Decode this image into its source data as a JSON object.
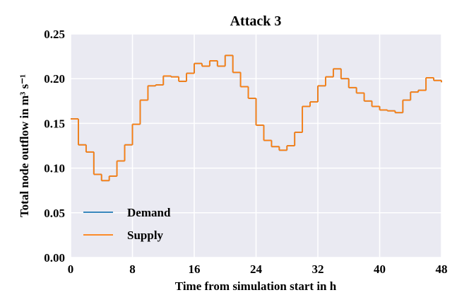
{
  "chart_data": {
    "type": "line",
    "step": true,
    "title": "Attack 3",
    "x_label": "Time from simulation start in h",
    "y_label": "Total node outflow in m³ s⁻¹",
    "x": [
      0,
      1,
      2,
      3,
      4,
      5,
      6,
      7,
      8,
      9,
      10,
      11,
      12,
      13,
      14,
      15,
      16,
      17,
      18,
      19,
      20,
      21,
      22,
      23,
      24,
      25,
      26,
      27,
      28,
      29,
      30,
      31,
      32,
      33,
      34,
      35,
      36,
      37,
      38,
      39,
      40,
      41,
      42,
      43,
      44,
      45,
      46,
      47,
      48
    ],
    "series": [
      {
        "name": "Demand",
        "color": "#1f77b4",
        "values": [
          0.155,
          0.126,
          0.118,
          0.093,
          0.086,
          0.091,
          0.108,
          0.126,
          0.149,
          0.176,
          0.192,
          0.193,
          0.203,
          0.202,
          0.197,
          0.206,
          0.217,
          0.214,
          0.22,
          0.214,
          0.226,
          0.207,
          0.191,
          0.178,
          0.148,
          0.131,
          0.124,
          0.12,
          0.125,
          0.14,
          0.169,
          0.174,
          0.192,
          0.202,
          0.211,
          0.2,
          0.19,
          0.184,
          0.175,
          0.169,
          0.165,
          0.164,
          0.162,
          0.176,
          0.185,
          0.187,
          0.201,
          0.198,
          0.196
        ]
      },
      {
        "name": "Supply",
        "color": "#ff7f0e",
        "values": [
          0.155,
          0.126,
          0.118,
          0.093,
          0.086,
          0.091,
          0.108,
          0.126,
          0.149,
          0.176,
          0.192,
          0.193,
          0.203,
          0.202,
          0.197,
          0.206,
          0.217,
          0.214,
          0.22,
          0.214,
          0.226,
          0.207,
          0.191,
          0.178,
          0.148,
          0.131,
          0.124,
          0.12,
          0.125,
          0.14,
          0.169,
          0.174,
          0.192,
          0.202,
          0.211,
          0.2,
          0.19,
          0.184,
          0.175,
          0.169,
          0.165,
          0.164,
          0.162,
          0.176,
          0.185,
          0.187,
          0.201,
          0.198,
          0.196
        ]
      }
    ],
    "xlim": [
      0,
      48
    ],
    "xticks": [
      0,
      8,
      16,
      24,
      32,
      40,
      48
    ],
    "ylim": [
      0,
      0.25
    ],
    "yticks": [
      {
        "value": 0,
        "label": "0.00"
      },
      0.05,
      {
        "value": 0.1,
        "label": "0.10"
      },
      0.15,
      {
        "value": 0.2,
        "label": "0.20"
      },
      0.25
    ],
    "grid": true,
    "legend": "lower left"
  }
}
